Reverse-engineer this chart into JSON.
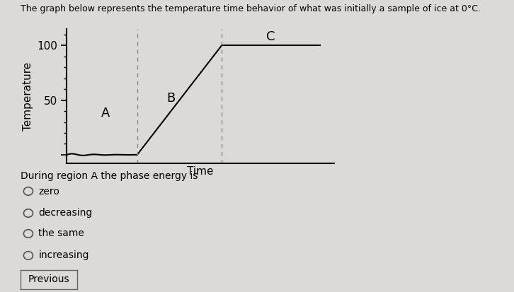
{
  "title": "The graph below represents the temperature time behavior of what was initially a sample of ice at 0°C.",
  "xlabel": "Time",
  "ylabel": "Temperature",
  "yticks": [
    50,
    100
  ],
  "bg_color": "#dcdad8",
  "line_color": "#000000",
  "dashed_color": "#888888",
  "region_A_label": "A",
  "region_B_label": "B",
  "region_C_label": "C",
  "question_text": "During region A the phase energy is",
  "options": [
    "zero",
    "decreasing",
    "the same",
    "increasing"
  ],
  "x_t1": 2.5,
  "x_t2": 5.5,
  "x_end": 9.0,
  "ymin": -8,
  "ymax": 115,
  "xmin": 0,
  "xmax": 9.5,
  "fig_width": 7.26,
  "fig_height": 4.13,
  "dpi": 100
}
